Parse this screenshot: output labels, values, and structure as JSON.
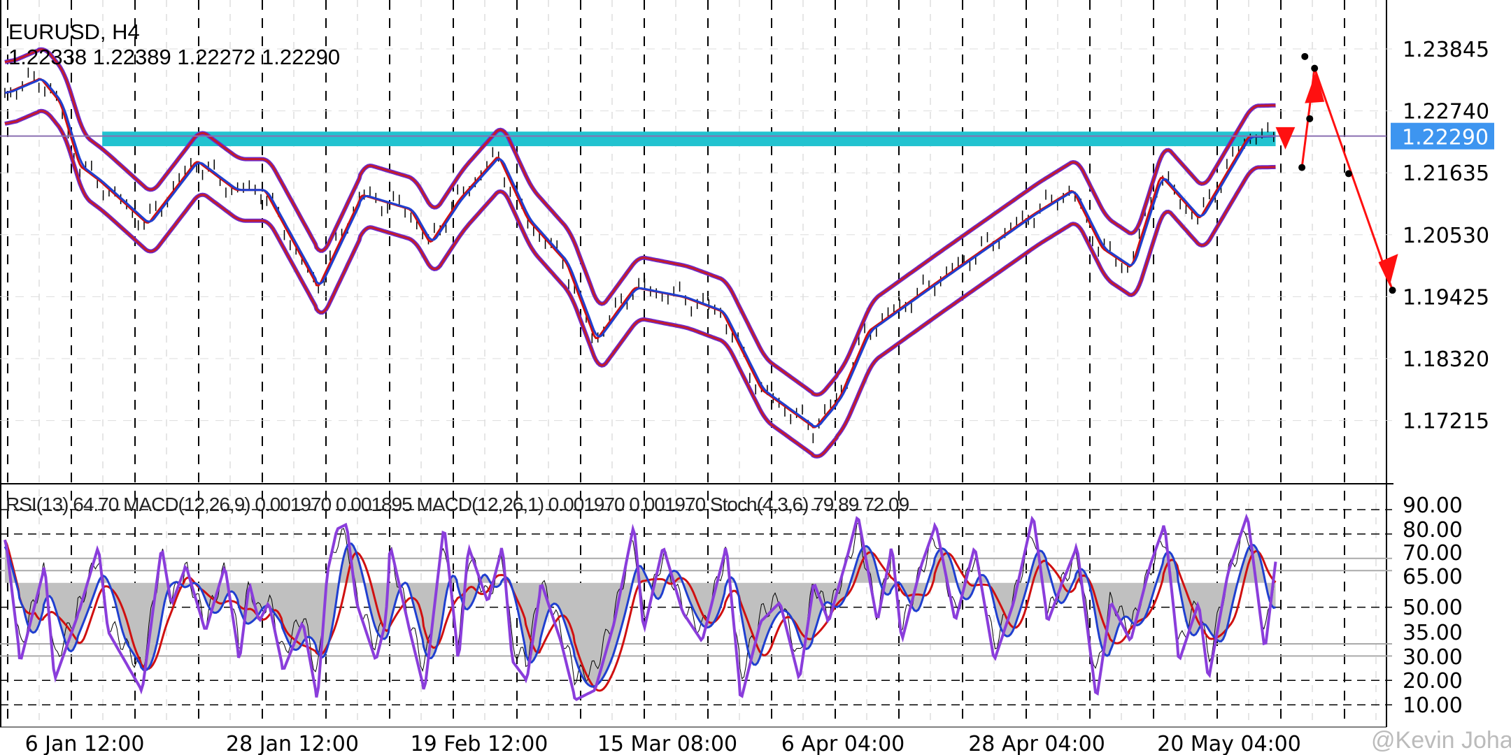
{
  "header": {
    "symbol_timeframe": "EURUSD, H4",
    "ohlc": "1.22338 1.22389 1.22272 1.22290"
  },
  "indicator_header": "RSI(13) 64.70 MACD(12,26,9) 0.001970 0.001895 MACD(12,26,1) 0.001970 0.001970 Stoch(4,3,6) 79.89 72.09",
  "watermark": "@Kevin Johan",
  "colors": {
    "price_band": "#22c3d0",
    "current_price_bg": "#3d95f0",
    "envelope": "#c41b2a",
    "envelope_outline": "#6a2bd0",
    "ma_fast": "#1f3fd0",
    "ma_slow": "#d01010",
    "stoch": "#8a3ddb",
    "rsi_fill": "#c0c0c0",
    "projection": "#ff1010"
  },
  "chart_data": {
    "type": "line",
    "price_axis": {
      "ticks": [
        "1.23845",
        "1.22740",
        "1.21635",
        "1.20530",
        "1.19425",
        "1.18320",
        "1.17215"
      ],
      "current_price": "1.22290"
    },
    "time_axis": {
      "ticks": [
        "6 Jan 12:00",
        "28 Jan 12:00",
        "19 Feb 12:00",
        "15 Mar 08:00",
        "6 Apr 04:00",
        "28 Apr 04:00",
        "20 May 04:00"
      ]
    },
    "price_series": [
      [
        5,
        1.2306
      ],
      [
        40,
        1.2332
      ],
      [
        60,
        1.2289
      ],
      [
        80,
        1.2176
      ],
      [
        100,
        1.215
      ],
      [
        150,
        1.2072
      ],
      [
        200,
        1.2185
      ],
      [
        240,
        1.2133
      ],
      [
        270,
        1.2133
      ],
      [
        325,
        1.1959
      ],
      [
        370,
        1.2124
      ],
      [
        420,
        1.2098
      ],
      [
        440,
        1.2037
      ],
      [
        470,
        1.2116
      ],
      [
        510,
        1.2194
      ],
      [
        540,
        1.2081
      ],
      [
        580,
        1.2003
      ],
      [
        610,
        1.1864
      ],
      [
        650,
        1.1959
      ],
      [
        700,
        1.1942
      ],
      [
        740,
        1.1916
      ],
      [
        780,
        1.1777
      ],
      [
        835,
        1.1708
      ],
      [
        860,
        1.176
      ],
      [
        890,
        1.1881
      ],
      [
        960,
        1.1968
      ],
      [
        1010,
        1.2029
      ],
      [
        1060,
        1.209
      ],
      [
        1100,
        1.2133
      ],
      [
        1130,
        1.2029
      ],
      [
        1160,
        1.1994
      ],
      [
        1190,
        1.2159
      ],
      [
        1230,
        1.2081
      ],
      [
        1280,
        1.2228
      ],
      [
        1310,
        1.2229
      ]
    ],
    "resistance_band": {
      "from": 105,
      "to": 1310,
      "low": 1.2211,
      "high": 1.2237
    },
    "projection_points": [
      [
        1337,
        1.2173
      ],
      [
        1345,
        1.226
      ],
      [
        1340,
        1.2371
      ],
      [
        1350,
        1.235
      ],
      [
        1385,
        1.2162
      ],
      [
        1430,
        1.1954
      ]
    ],
    "oscillator_axis": {
      "ticks": [
        "90.00",
        "80.00",
        "70.00",
        "65.00",
        "50.00",
        "35.00",
        "30.00",
        "20.00",
        "10.00"
      ]
    },
    "stoch_series": [
      [
        5,
        77.6
      ],
      [
        20,
        27.6
      ],
      [
        45,
        67
      ],
      [
        55,
        20
      ],
      [
        80,
        48
      ],
      [
        100,
        75
      ],
      [
        110,
        40
      ],
      [
        145,
        15.6
      ],
      [
        165,
        75
      ],
      [
        175,
        51
      ],
      [
        190,
        67
      ],
      [
        210,
        40
      ],
      [
        230,
        67
      ],
      [
        245,
        28
      ],
      [
        255,
        60
      ],
      [
        265,
        44
      ],
      [
        275,
        52
      ],
      [
        290,
        24
      ],
      [
        310,
        44
      ],
      [
        325,
        12
      ],
      [
        335,
        64
      ],
      [
        345,
        82
      ],
      [
        355,
        84
      ],
      [
        365,
        52
      ],
      [
        385,
        28
      ],
      [
        395,
        44
      ],
      [
        400,
        75
      ],
      [
        420,
        40
      ],
      [
        435,
        15.6
      ],
      [
        455,
        84
      ],
      [
        470,
        28
      ],
      [
        480,
        75
      ],
      [
        500,
        52
      ],
      [
        515,
        75
      ],
      [
        525,
        28
      ],
      [
        540,
        20
      ],
      [
        555,
        60
      ],
      [
        575,
        36
      ],
      [
        590,
        12
      ],
      [
        610,
        16
      ],
      [
        630,
        44
      ],
      [
        650,
        84
      ],
      [
        660,
        40
      ],
      [
        680,
        75
      ],
      [
        700,
        48
      ],
      [
        720,
        36
      ],
      [
        745,
        75
      ],
      [
        760,
        12
      ],
      [
        780,
        44
      ],
      [
        800,
        52
      ],
      [
        820,
        20
      ],
      [
        835,
        60
      ],
      [
        850,
        44
      ],
      [
        870,
        72
      ],
      [
        880,
        88
      ],
      [
        900,
        44
      ],
      [
        915,
        75
      ],
      [
        925,
        36
      ],
      [
        945,
        67
      ],
      [
        960,
        84
      ],
      [
        980,
        44
      ],
      [
        1000,
        75
      ],
      [
        1020,
        28
      ],
      [
        1040,
        52
      ],
      [
        1060,
        88
      ],
      [
        1075,
        44
      ],
      [
        1090,
        60
      ],
      [
        1105,
        75
      ],
      [
        1125,
        12
      ],
      [
        1140,
        52
      ],
      [
        1160,
        36
      ],
      [
        1180,
        67
      ],
      [
        1195,
        84
      ],
      [
        1210,
        28
      ],
      [
        1230,
        52
      ],
      [
        1240,
        20
      ],
      [
        1260,
        64
      ],
      [
        1280,
        88
      ],
      [
        1298,
        32
      ],
      [
        1310,
        72
      ]
    ]
  }
}
